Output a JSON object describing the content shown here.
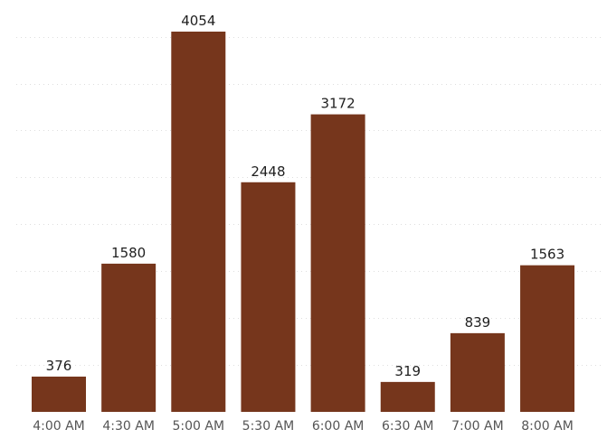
{
  "chart_data": {
    "type": "bar",
    "categories": [
      "4:00 AM",
      "4:30 AM",
      "5:00 AM",
      "5:30 AM",
      "6:00 AM",
      "6:30 AM",
      "7:00 AM",
      "8:00 AM"
    ],
    "values": [
      376,
      1580,
      4054,
      2448,
      3172,
      319,
      839,
      1563
    ],
    "title": "",
    "xlabel": "",
    "ylabel": "",
    "ylim": [
      0,
      4054
    ],
    "grid": true,
    "gridline_values": [
      500,
      1000,
      1500,
      2000,
      2500,
      3000,
      3500,
      4000
    ],
    "legend": "none",
    "bar_color": "#76361c",
    "show_data_labels": true
  }
}
